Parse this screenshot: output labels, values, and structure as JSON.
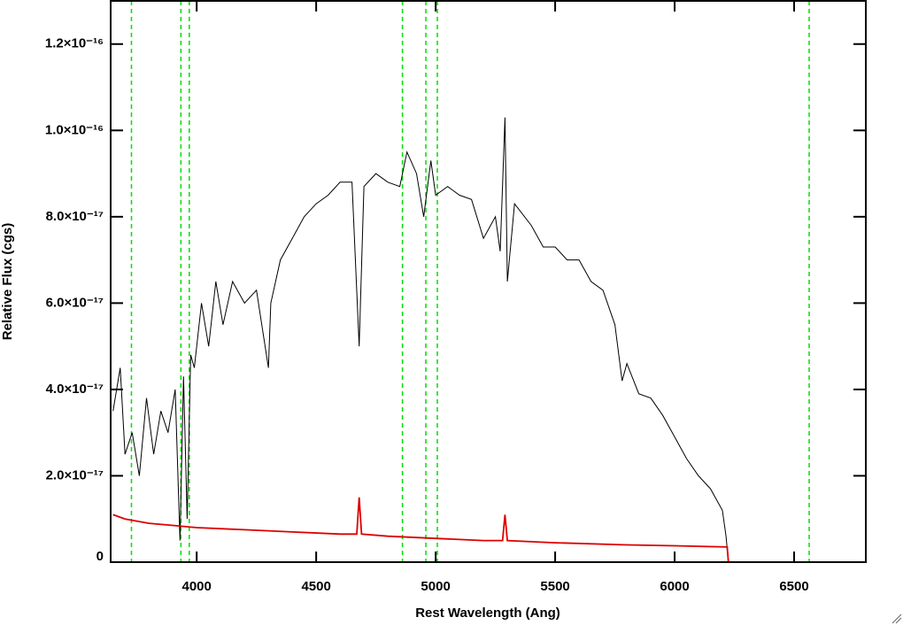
{
  "chart_data": {
    "type": "line",
    "xlabel": "Rest Wavelength (Ang)",
    "ylabel": "Relative Flux (cgs)",
    "xlim": [
      3640,
      6800
    ],
    "ylim": [
      0,
      1.3e-16
    ],
    "xticks": [
      4000,
      4500,
      5000,
      5500,
      6000,
      6500
    ],
    "yticks": [
      0,
      {
        "value": 2e-17,
        "label": "2.0×10⁻¹⁷"
      },
      {
        "value": 4e-17,
        "label": "4.0×10⁻¹⁷"
      },
      {
        "value": 6e-17,
        "label": "6.0×10⁻¹⁷"
      },
      {
        "value": 8e-17,
        "label": "8.0×10⁻¹⁷"
      },
      {
        "value": 1e-16,
        "label": "1.0×10⁻¹⁶"
      },
      {
        "value": 1.2e-16,
        "label": "1.2×10⁻¹⁶"
      }
    ],
    "series": [
      {
        "color": "#000000",
        "x": [
          3650,
          3680,
          3700,
          3730,
          3760,
          3790,
          3820,
          3850,
          3880,
          3910,
          3930,
          3945,
          3960,
          3975,
          3990,
          4020,
          4050,
          4080,
          4110,
          4150,
          4200,
          4250,
          4300,
          4310,
          4350,
          4400,
          4450,
          4500,
          4550,
          4600,
          4650,
          4680,
          4700,
          4750,
          4800,
          4850,
          4880,
          4920,
          4950,
          4980,
          5000,
          5050,
          5100,
          5150,
          5200,
          5250,
          5270,
          5290,
          5300,
          5330,
          5400,
          5450,
          5500,
          5550,
          5600,
          5650,
          5700,
          5750,
          5780,
          5800,
          5850,
          5900,
          5950,
          6000,
          6050,
          6100,
          6150,
          6200,
          6215,
          6225
        ],
        "values": [
          3.5e-17,
          4.5e-17,
          2.5e-17,
          3e-17,
          2e-17,
          3.8e-17,
          2.5e-17,
          3.5e-17,
          3e-17,
          4e-17,
          5e-18,
          4.3e-17,
          1e-17,
          4.8e-17,
          4.5e-17,
          6e-17,
          5e-17,
          6.5e-17,
          5.5e-17,
          6.5e-17,
          6e-17,
          6.3e-17,
          4.5e-17,
          6e-17,
          7e-17,
          7.5e-17,
          8e-17,
          8.3e-17,
          8.5e-17,
          8.8e-17,
          8.8e-17,
          5e-17,
          8.7e-17,
          9e-17,
          8.8e-17,
          8.7e-17,
          9.5e-17,
          9e-17,
          8e-17,
          9.3e-17,
          8.5e-17,
          8.7e-17,
          8.5e-17,
          8.4e-17,
          7.5e-17,
          8e-17,
          7.2e-17,
          1.03e-16,
          6.5e-17,
          8.3e-17,
          7.8e-17,
          7.3e-17,
          7.3e-17,
          7e-17,
          7e-17,
          6.5e-17,
          6.3e-17,
          5.5e-17,
          4.2e-17,
          4.6e-17,
          3.9e-17,
          3.8e-17,
          3.4e-17,
          2.9e-17,
          2.4e-17,
          2e-17,
          1.7e-17,
          1.2e-17,
          6e-18,
          0
        ]
      },
      {
        "color": "#dd0000",
        "x": [
          3650,
          3700,
          3800,
          3900,
          4000,
          4200,
          4400,
          4600,
          4670,
          4680,
          4690,
          4800,
          5000,
          5200,
          5280,
          5290,
          5300,
          5500,
          5800,
          6000,
          6220,
          6225,
          6800
        ],
        "values": [
          1.1e-17,
          1e-17,
          9e-18,
          8.5e-18,
          8e-18,
          7.5e-18,
          7e-18,
          6.5e-18,
          6.5e-18,
          1.5e-17,
          6.5e-18,
          6e-18,
          5.5e-18,
          5e-18,
          5e-18,
          1.1e-17,
          5e-18,
          4.5e-18,
          4e-18,
          3.8e-18,
          3.5e-18,
          0,
          0
        ]
      }
    ],
    "vlines": {
      "color": "#00dd00",
      "values": [
        3727,
        3934,
        3969,
        4861,
        4959,
        5007,
        6563
      ]
    }
  }
}
